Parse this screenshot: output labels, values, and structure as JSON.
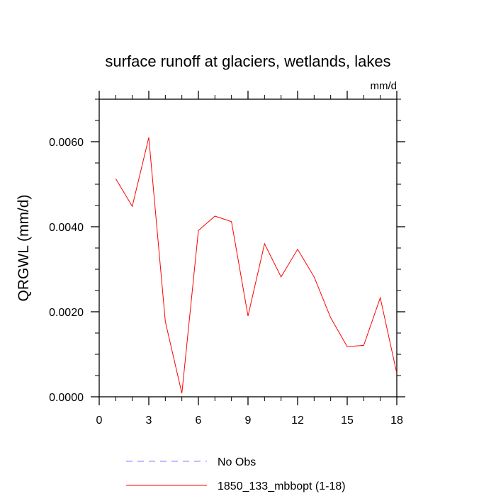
{
  "chart_data": {
    "type": "line",
    "title": "surface runoff at glaciers, wetlands, lakes",
    "units_label": "mm/d",
    "ylabel": "QRGWL  (mm/d)",
    "xlabel": "",
    "xlim": [
      0,
      18
    ],
    "ylim": [
      0,
      0.007
    ],
    "x_ticks": [
      0,
      3,
      6,
      9,
      12,
      15,
      18
    ],
    "x_tick_labels": [
      "0",
      "3",
      "6",
      "9",
      "12",
      "15",
      "18"
    ],
    "y_ticks": [
      0,
      0.002,
      0.004,
      0.006
    ],
    "y_tick_labels": [
      "0.0000",
      "0.0020",
      "0.0040",
      "0.0060"
    ],
    "grid": false,
    "legend_position": "bottom",
    "series": [
      {
        "name": "No Obs",
        "color": "#8080ff",
        "style": "dashed",
        "x": [],
        "values": []
      },
      {
        "name": "1850_133_mbbopt (1-18)",
        "color": "#ff0000",
        "style": "solid",
        "x": [
          1,
          2,
          3,
          4,
          5,
          6,
          7,
          8,
          9,
          10,
          11,
          12,
          13,
          14,
          15,
          16,
          17,
          18
        ],
        "values": [
          0.00513,
          0.00448,
          0.0061,
          0.00177,
          8e-05,
          0.00391,
          0.00425,
          0.00412,
          0.0019,
          0.0036,
          0.00282,
          0.00347,
          0.00282,
          0.00186,
          0.00118,
          0.00121,
          0.00233,
          0.00055
        ]
      }
    ]
  }
}
